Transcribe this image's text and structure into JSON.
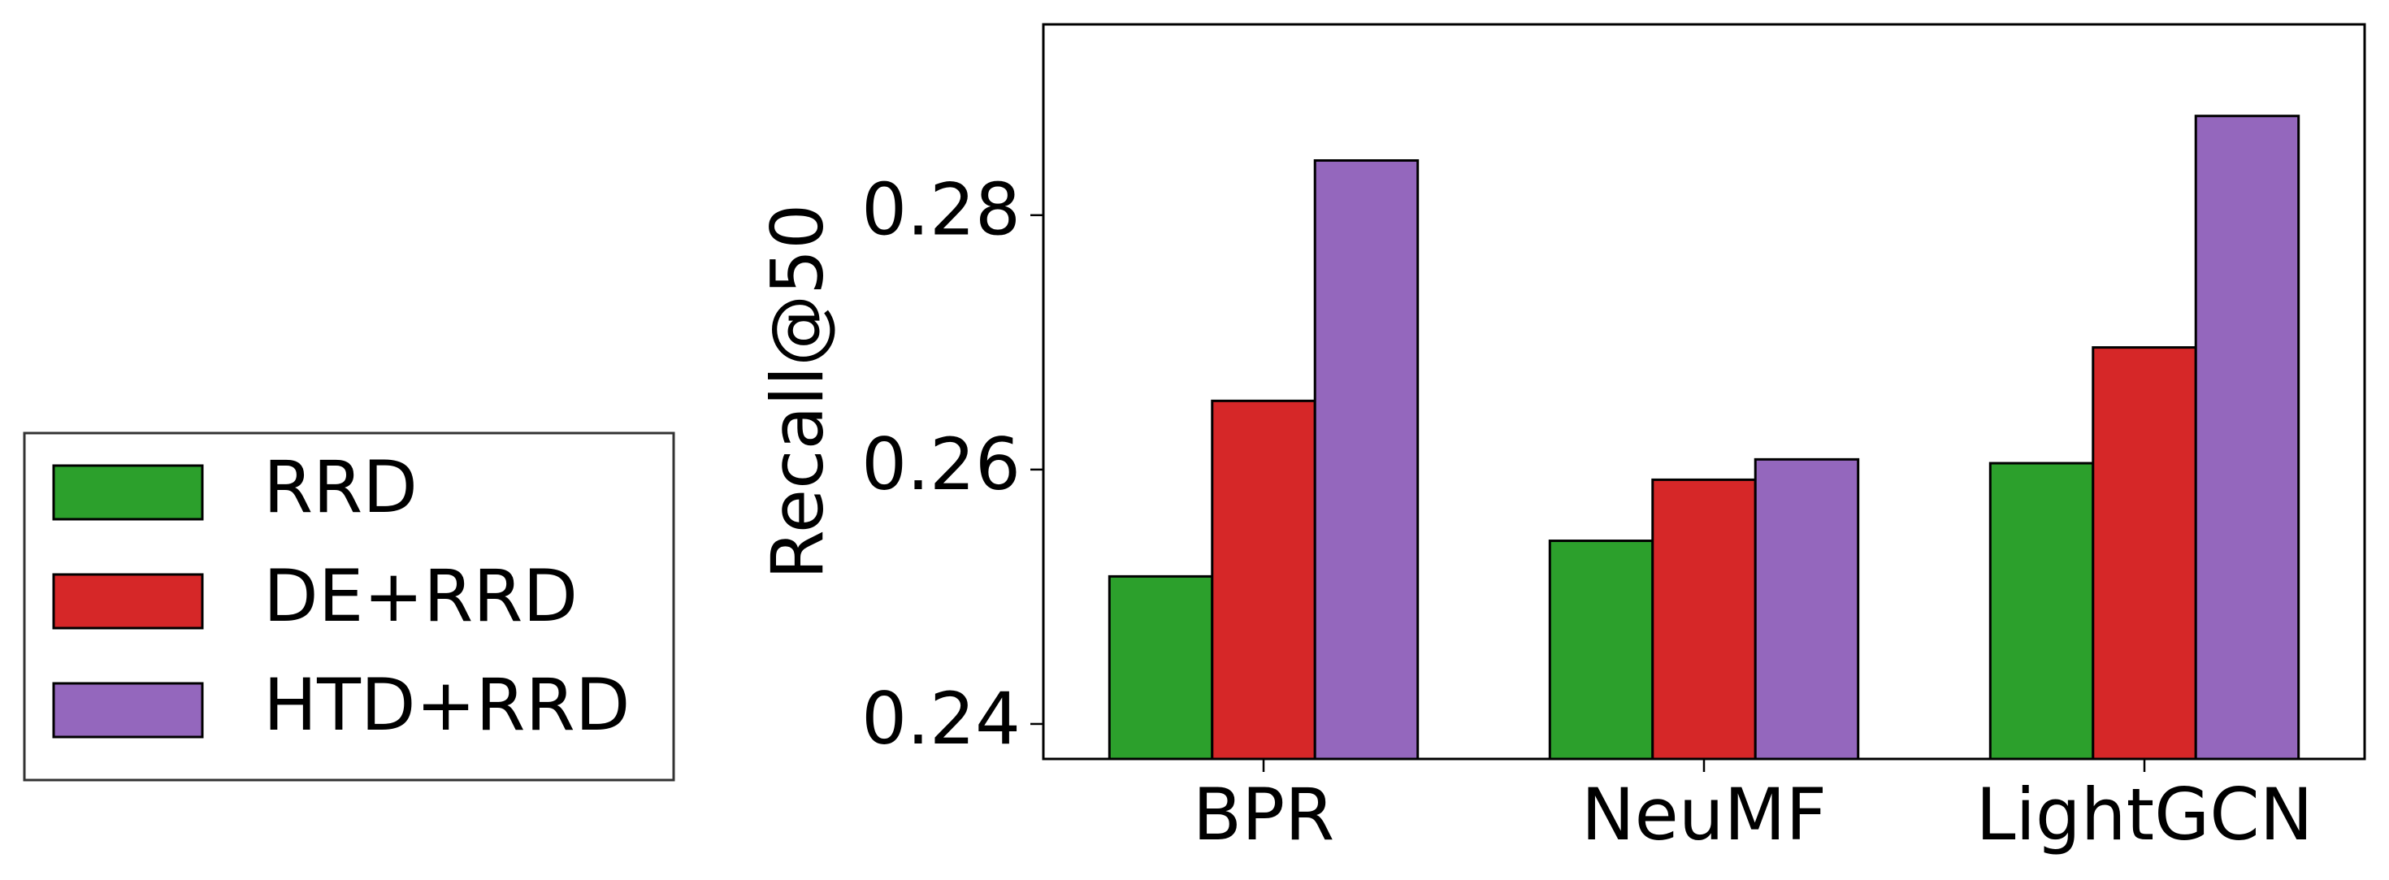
{
  "chart_data": {
    "type": "bar",
    "y_label": "Recall@50",
    "categories": [
      "BPR",
      "NeuMF",
      "LightGCN"
    ],
    "series": [
      {
        "name": "RRD",
        "color": "#2ca02c",
        "values": [
          0.2516,
          0.2544,
          0.2605
        ]
      },
      {
        "name": "DE+RRD",
        "color": "#d62728",
        "values": [
          0.2654,
          0.2592,
          0.2696
        ]
      },
      {
        "name": "HTD+RRD",
        "color": "#9467bd",
        "values": [
          0.2843,
          0.2608,
          0.2878
        ]
      }
    ],
    "ylim": [
      0.23725,
      0.295
    ],
    "yticks": [
      0.24,
      0.26,
      0.28
    ],
    "grid": false,
    "legend": "left"
  }
}
